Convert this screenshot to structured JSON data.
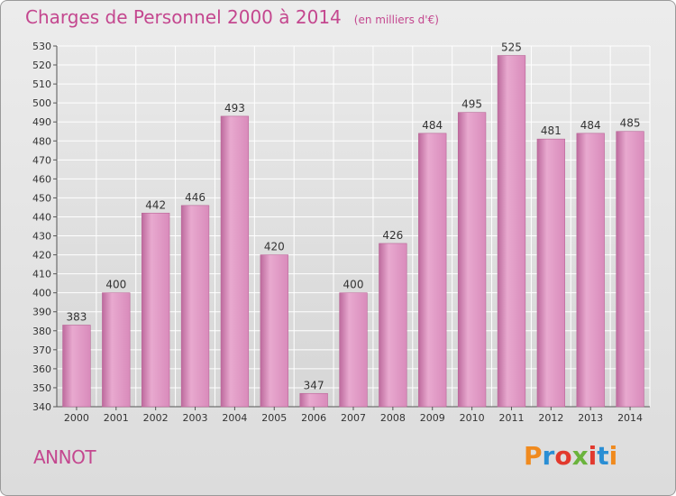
{
  "header": {
    "title": "Charges de Personnel 2000 à 2014",
    "subtitle": "(en milliers d'€)"
  },
  "footer": {
    "commune": "ANNOT",
    "logo_text": "Proxiti",
    "logo_colors": [
      "#f08a1e",
      "#2a8ed4",
      "#e2392d",
      "#6ab33c",
      "#e2392d",
      "#2a8ed4",
      "#f08a1e"
    ]
  },
  "colors": {
    "bar": "#d98bbb",
    "bar_light": "#e8a9cf",
    "bar_dark": "#bd6a9d",
    "title": "#c4478f",
    "grid": "#ffffff"
  },
  "chart_data": {
    "type": "bar",
    "title": "Charges de Personnel 2000 à 2014",
    "subtitle": "(en milliers d'€)",
    "categories": [
      "2000",
      "2001",
      "2002",
      "2003",
      "2004",
      "2005",
      "2006",
      "2007",
      "2008",
      "2009",
      "2010",
      "2011",
      "2012",
      "2013",
      "2014"
    ],
    "values": [
      383,
      400,
      442,
      446,
      493,
      420,
      347,
      400,
      426,
      484,
      495,
      525,
      481,
      484,
      485
    ],
    "ylim": [
      340,
      530
    ],
    "ytick_step": 10,
    "grid": true,
    "xlabel": "",
    "ylabel": ""
  }
}
